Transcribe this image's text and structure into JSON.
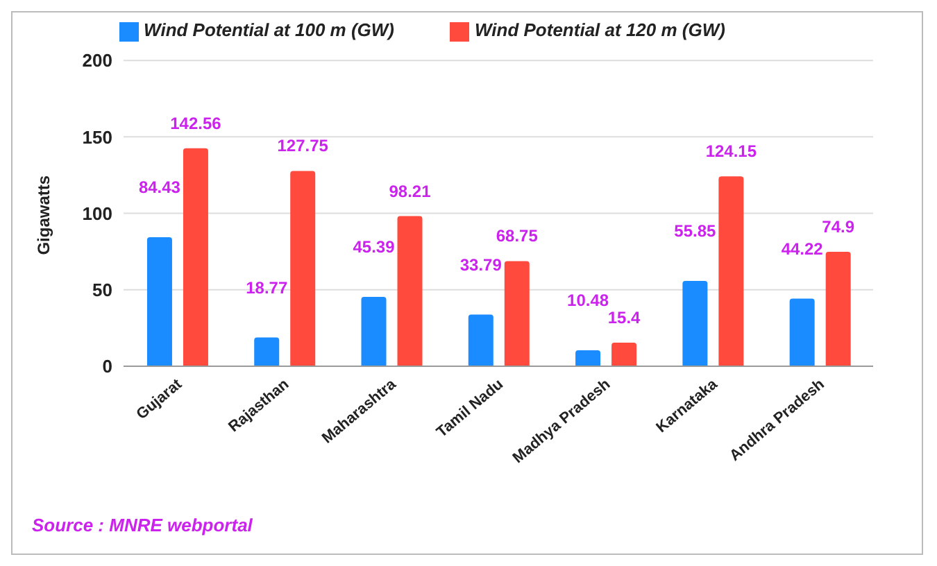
{
  "chart_data": {
    "type": "bar",
    "ylabel": "Gigawatts",
    "categories": [
      "Gujarat",
      "Rajasthan",
      "Maharashtra",
      "Tamil Nadu",
      "Madhya Pradesh",
      "Karnataka",
      "Andhra Pradesh"
    ],
    "series": [
      {
        "name": "Wind Potential at 100 m (GW)",
        "color": "#1a8cff",
        "values": [
          84.43,
          18.77,
          45.39,
          33.79,
          10.48,
          55.85,
          44.22
        ]
      },
      {
        "name": "Wind Potential at 120 m (GW)",
        "color": "#ff4a3d",
        "values": [
          142.56,
          127.75,
          98.21,
          68.75,
          15.4,
          124.15,
          74.9
        ]
      }
    ],
    "ylim": [
      0,
      200
    ],
    "yticks": [
      0,
      50,
      100,
      150,
      200
    ],
    "grid": "y",
    "legend": "top",
    "data_labels": true,
    "annotations": [
      "Source : MNRE webportal"
    ]
  }
}
